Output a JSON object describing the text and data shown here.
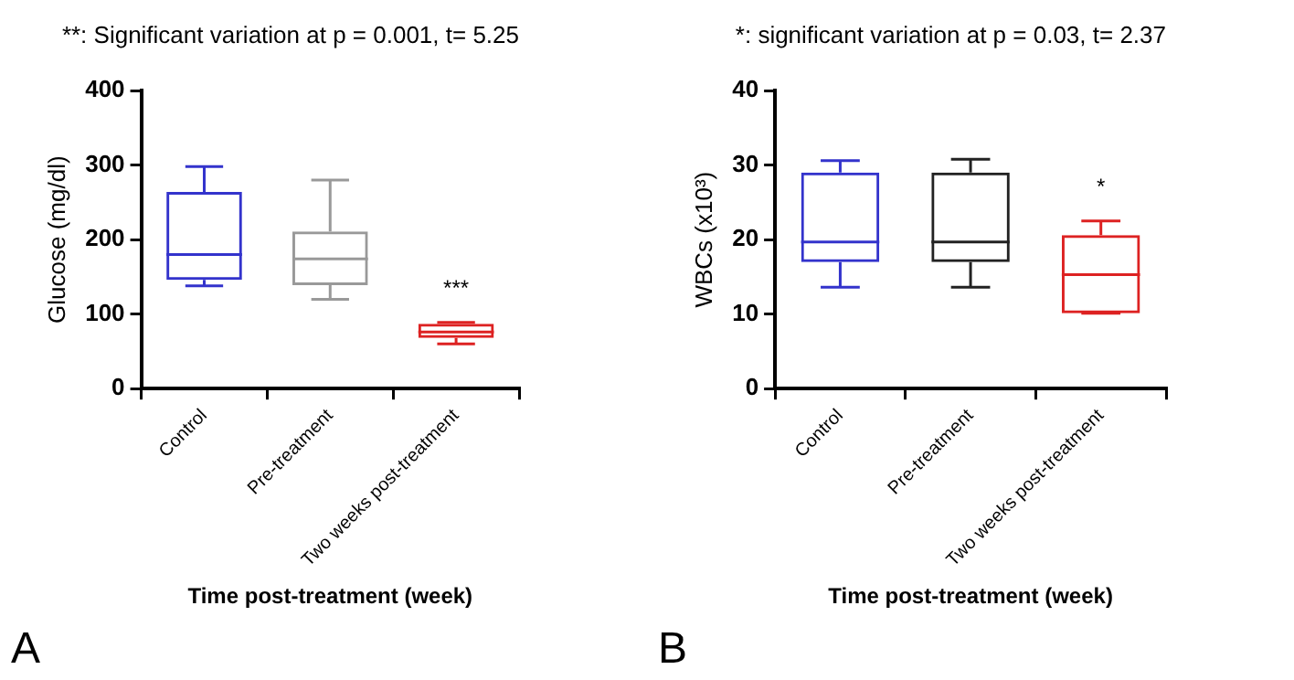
{
  "chart_data": [
    {
      "type": "box",
      "title": "**: Significant variation at p = 0.001, t= 5.25",
      "ylabel": "Glucose (mg/dl)",
      "xlabel": "Time post-treatment (week)",
      "categories": [
        "Control",
        "Pre-treatment",
        "Two weeks post-treatment"
      ],
      "colors": [
        "#3333cc",
        "#999999",
        "#dd2222"
      ],
      "boxes": [
        {
          "low": 138,
          "q1": 146,
          "median": 180,
          "q3": 264,
          "high": 298
        },
        {
          "low": 120,
          "q1": 139,
          "median": 174,
          "q3": 211,
          "high": 280
        },
        {
          "low": 60,
          "q1": 68,
          "median": 76,
          "q3": 87,
          "high": 89
        }
      ],
      "ylim": [
        0,
        400
      ],
      "yticks": [
        0,
        100,
        200,
        300,
        400
      ],
      "grid": false,
      "legend": false,
      "annotations": [
        "***",
        "A"
      ]
    },
    {
      "type": "box",
      "title": "*: significant variation at p = 0.03, t= 2.37",
      "ylabel": "WBCs (x10³)",
      "xlabel": "Time post-treatment (week)",
      "categories": [
        "Control",
        "Pre-treatment",
        "Two weeks post-treatment"
      ],
      "colors": [
        "#3333cc",
        "#222222",
        "#dd2222"
      ],
      "boxes": [
        {
          "low": 13.6,
          "q1": 17,
          "median": 19.7,
          "q3": 29,
          "high": 30.6
        },
        {
          "low": 13.6,
          "q1": 17,
          "median": 19.7,
          "q3": 29,
          "high": 30.8
        },
        {
          "low": 10.1,
          "q1": 10.1,
          "median": 15.3,
          "q3": 20.6,
          "high": 22.5
        }
      ],
      "ylim": [
        0,
        40
      ],
      "yticks": [
        0,
        10,
        20,
        30,
        40
      ],
      "grid": false,
      "legend": false,
      "annotations": [
        "*",
        "B"
      ]
    }
  ]
}
